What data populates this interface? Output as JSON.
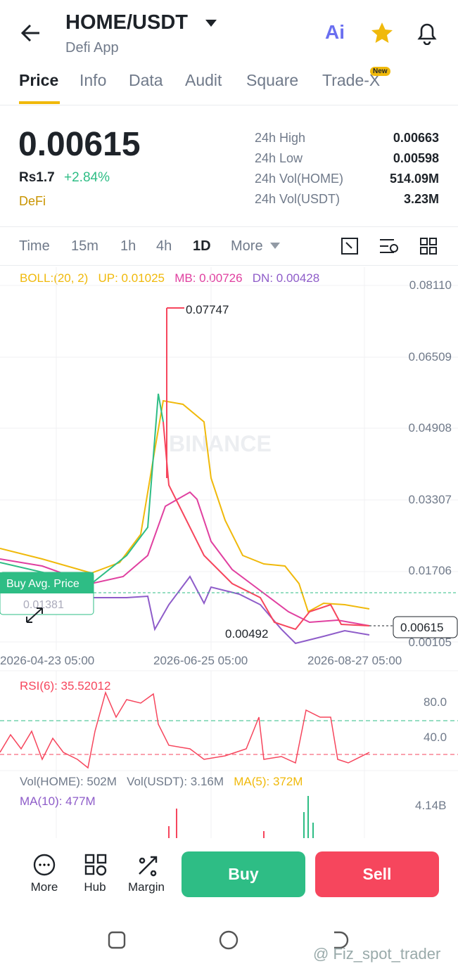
{
  "header": {
    "pair": "HOME/USDT",
    "subtitle": "Defi App",
    "ai": "Ai"
  },
  "tabs": [
    "Price",
    "Info",
    "Data",
    "Audit",
    "Square",
    "Trade-X"
  ],
  "new_badge": "New",
  "price": {
    "last": "0.00615",
    "fiat": "Rs1.7",
    "change": "+2.84%",
    "tag": "DeFi"
  },
  "stats": [
    [
      "24h High",
      "0.00663"
    ],
    [
      "24h Low",
      "0.00598"
    ],
    [
      "24h Vol(HOME)",
      "514.09M"
    ],
    [
      "24h Vol(USDT)",
      "3.23M"
    ]
  ],
  "intervals": [
    "Time",
    "15m",
    "1h",
    "4h",
    "1D",
    "More"
  ],
  "boll": {
    "label": "BOLL:(20, 2)",
    "up": "UP: 0.01025",
    "mb": "MB: 0.00726",
    "dn": "DN: 0.00428"
  },
  "price_axis": [
    "0.08110",
    "0.06509",
    "0.04908",
    "0.03307",
    "0.01706",
    "0.00105"
  ],
  "annotations": {
    "high": "0.07747",
    "low": "0.00492",
    "current": "0.00615",
    "buy_avg_label": "Buy Avg. Price",
    "buy_avg_value": "0.01381"
  },
  "time_axis": [
    "2026-04-23 05:00",
    "2026-06-25 05:00",
    "2026-08-27 05:00"
  ],
  "rsi": {
    "label": "RSI(6): 35.52012",
    "ticks": [
      "80.0",
      "40.0"
    ]
  },
  "volume": {
    "vol_home": "Vol(HOME): 502M",
    "vol_usdt": "Vol(USDT): 3.16M",
    "ma5": "MA(5): 372M",
    "ma10": "MA(10): 477M",
    "axis": "4.14B"
  },
  "bottom": {
    "actions": [
      "More",
      "Hub",
      "Margin"
    ],
    "buy": "Buy",
    "sell": "Sell"
  },
  "logo": "BINANCE",
  "watermark": "@ Fiz_spot_trader"
}
